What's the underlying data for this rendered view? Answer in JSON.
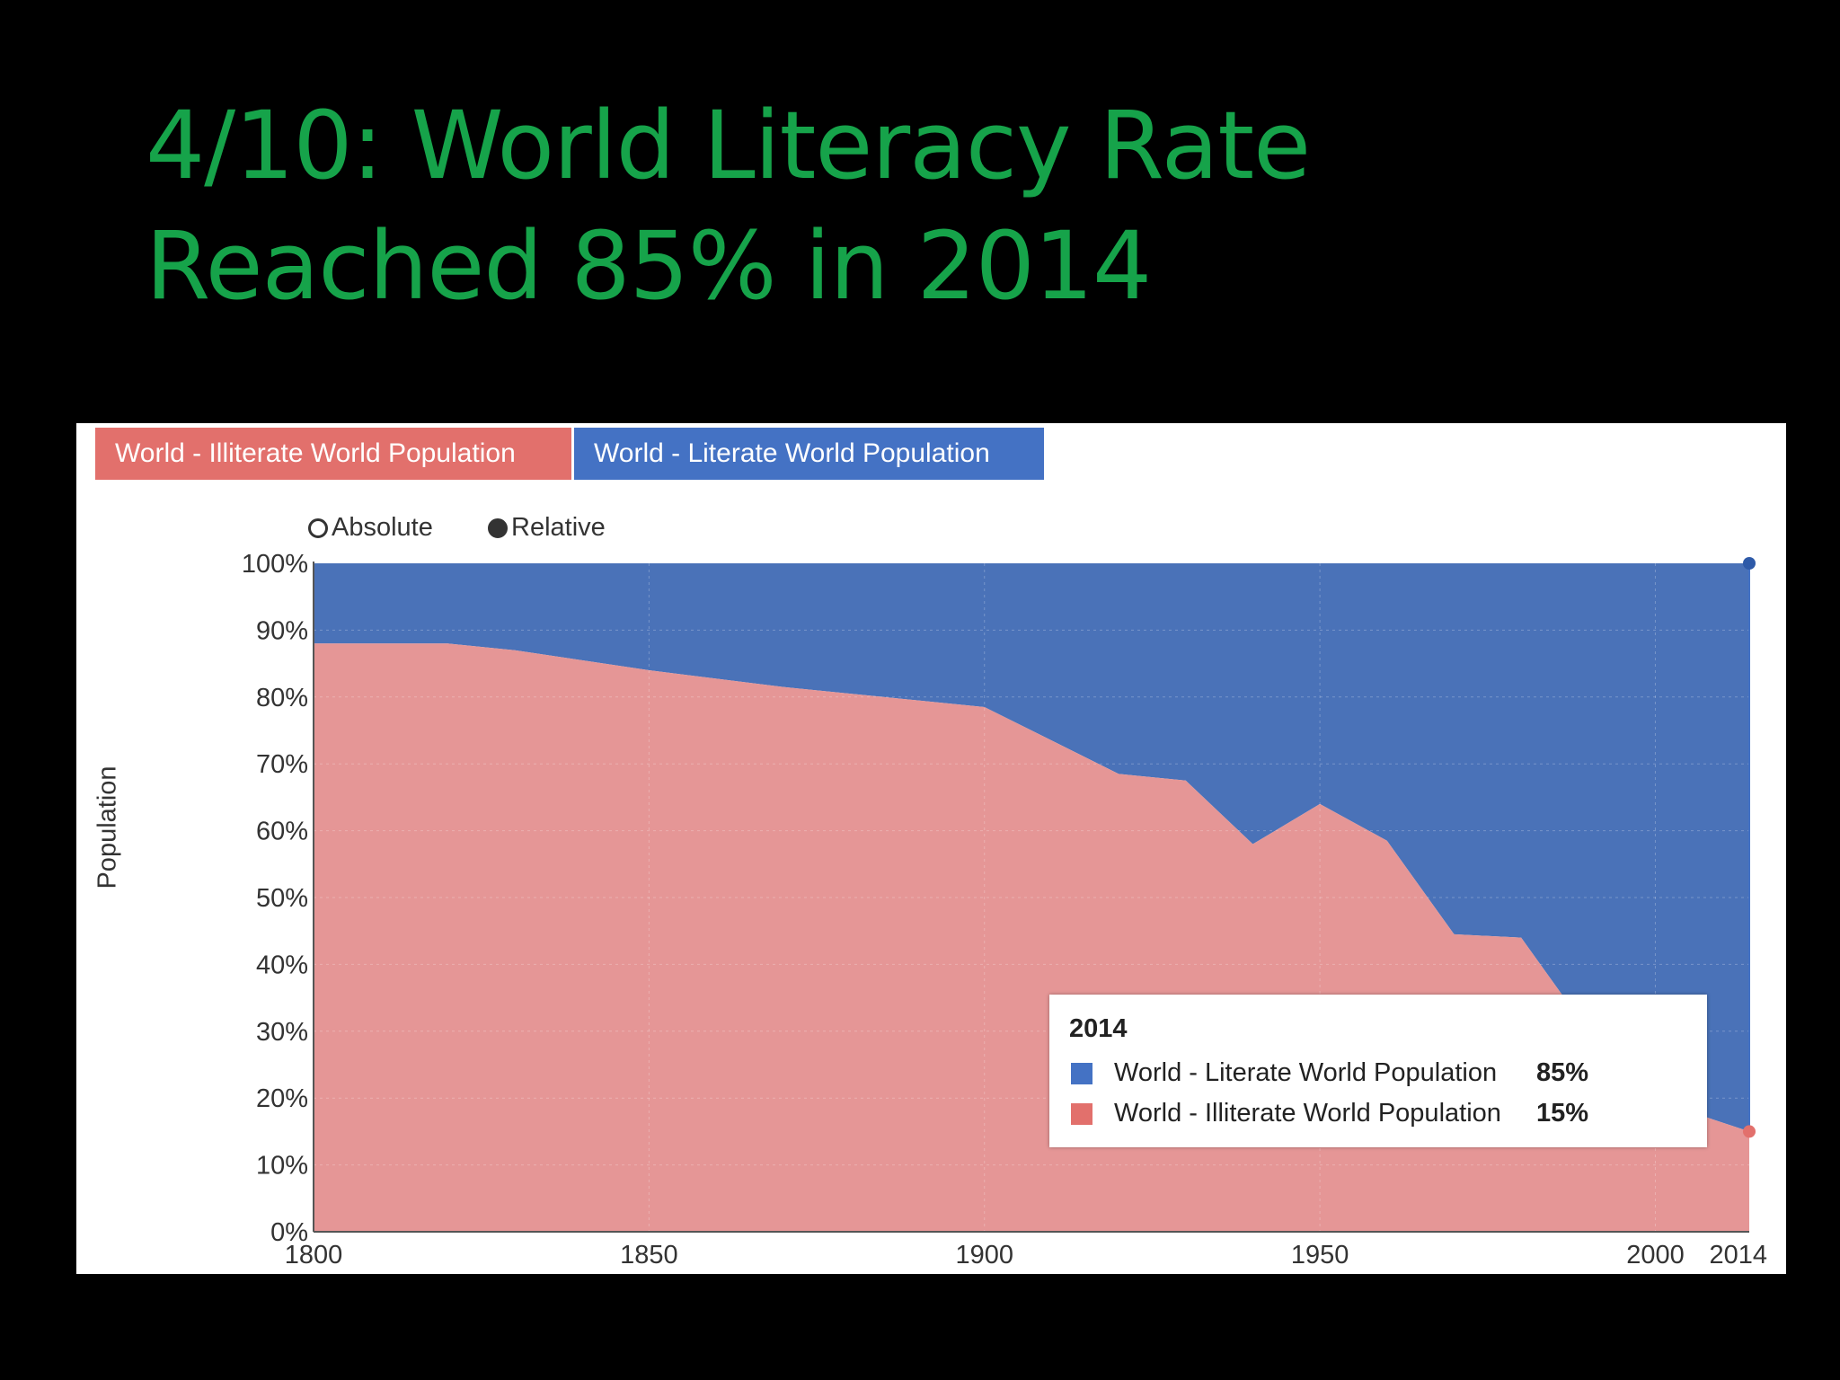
{
  "slide": {
    "title_line1": "4/10: World Literacy Rate",
    "title_line2": "Reached 85% in 2014",
    "title_color": "#16a34a"
  },
  "tabs": {
    "illiterate_label": "World - Illiterate World Population",
    "literate_label": "World - Literate World Population"
  },
  "toggle": {
    "absolute_label": "Absolute",
    "relative_label": "Relative",
    "selected": "Relative"
  },
  "legend": {
    "year": "2014",
    "items": [
      {
        "name": "World - Literate World Population",
        "value": "85%",
        "color": "#4472c4"
      },
      {
        "name": "World - Illiterate World Population",
        "value": "15%",
        "color": "#e2706c"
      }
    ]
  },
  "chart_data": {
    "type": "area",
    "stacked": true,
    "normalized": true,
    "ylabel": "Population",
    "xlabel": "",
    "x_ticks": [
      1800,
      1850,
      1900,
      1950,
      2000,
      2014
    ],
    "y_ticks": [
      "0%",
      "10%",
      "20%",
      "30%",
      "40%",
      "50%",
      "60%",
      "70%",
      "80%",
      "90%",
      "100%"
    ],
    "xlim": [
      1800,
      2014
    ],
    "ylim": [
      0,
      100
    ],
    "grid": true,
    "x": [
      1800,
      1820,
      1830,
      1850,
      1870,
      1900,
      1910,
      1920,
      1930,
      1940,
      1950,
      1960,
      1970,
      1980,
      1990,
      2000,
      2005,
      2014
    ],
    "series": [
      {
        "name": "World - Illiterate World Population",
        "color": "#e59696",
        "values": [
          88,
          88,
          87,
          84,
          81.5,
          78.5,
          73.5,
          68.5,
          67.5,
          58,
          64,
          58.5,
          44.5,
          44,
          30,
          18,
          18,
          15
        ]
      },
      {
        "name": "World - Literate World Population",
        "color": "#4a72b8",
        "values": [
          12,
          12,
          13,
          16,
          18.5,
          21.5,
          26.5,
          31.5,
          32.5,
          42,
          36,
          41.5,
          55.5,
          56,
          70,
          82,
          82,
          85
        ]
      }
    ]
  }
}
